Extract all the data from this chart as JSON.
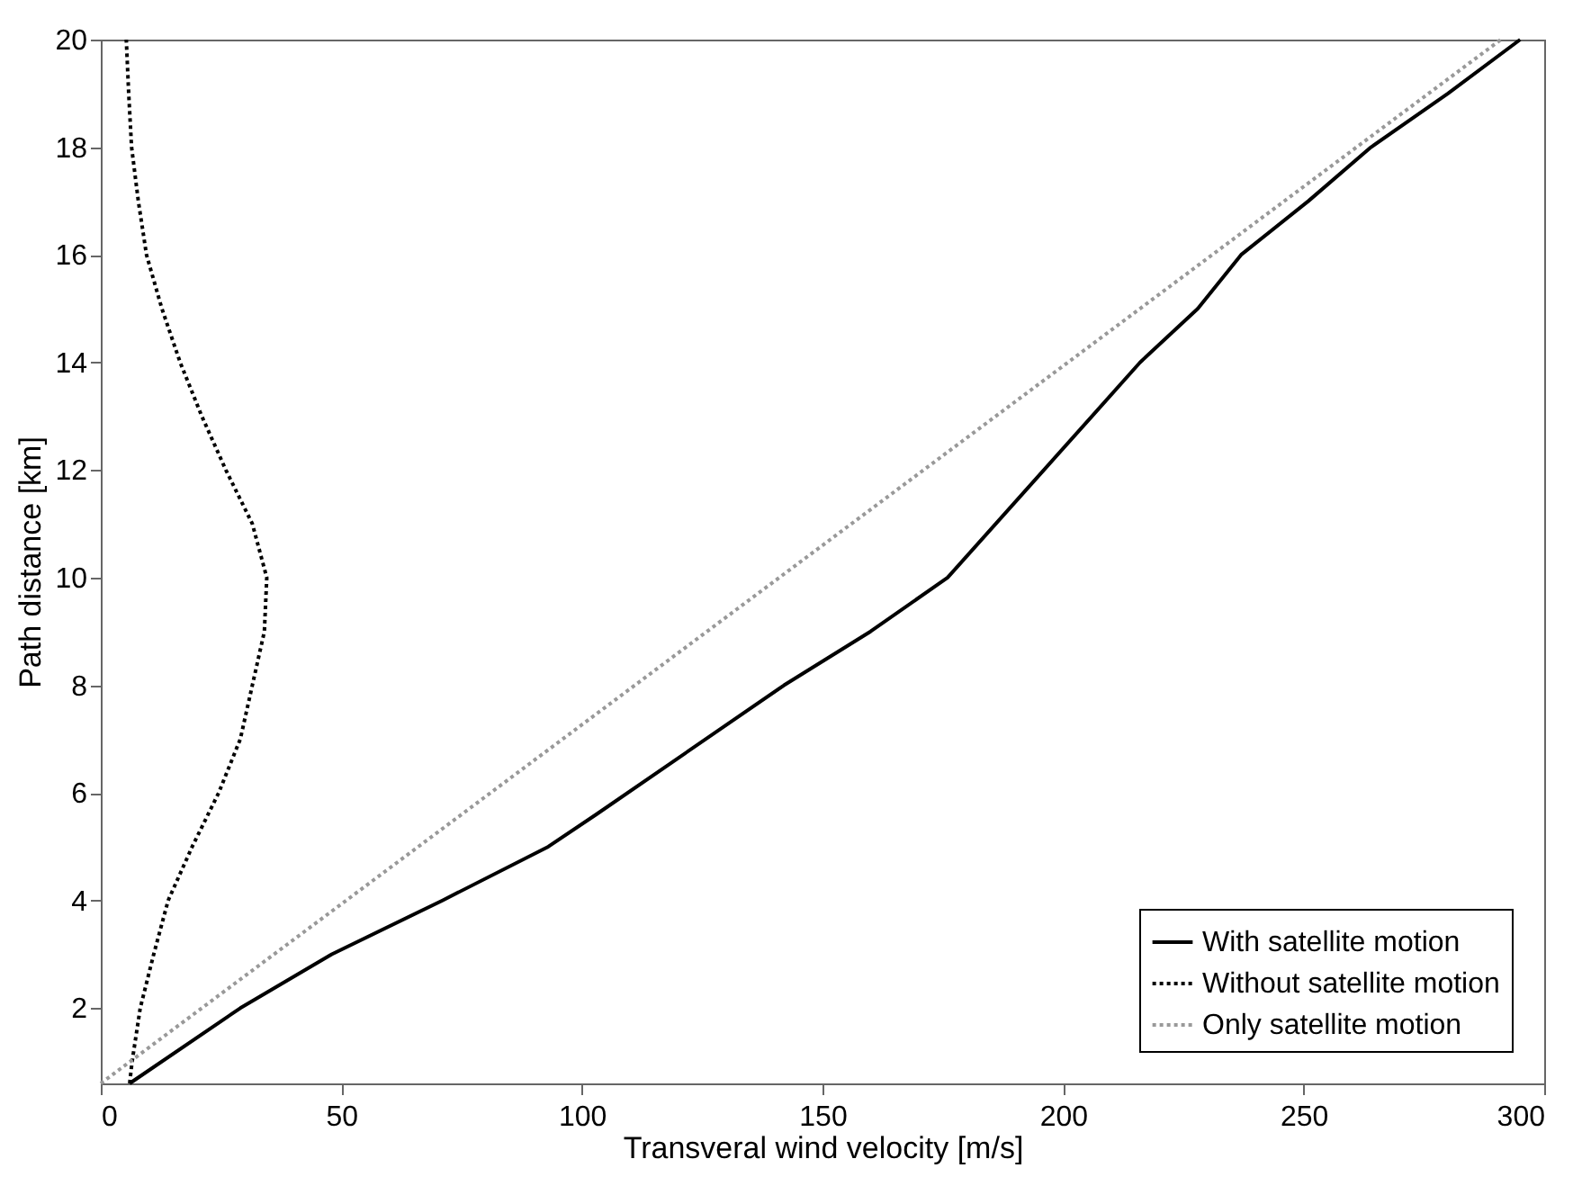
{
  "chart_data": {
    "type": "line",
    "xlabel": "Transveral wind velocity [m/s]",
    "ylabel": "Path distance [km]",
    "xlim": [
      0,
      300
    ],
    "xticks": [
      0,
      50,
      100,
      150,
      200,
      250,
      300
    ],
    "ylim": [
      0.6,
      20
    ],
    "yticks": [
      2,
      4,
      6,
      8,
      10,
      12,
      14,
      16,
      18,
      20
    ],
    "grid": false,
    "legend": "bottom right",
    "series": [
      {
        "name": "With satellite motion",
        "color": "#000000",
        "line_style": "solid",
        "x": [
          6,
          29,
          48,
          71,
          93,
          103,
          142,
          160,
          176,
          186,
          196,
          206,
          216,
          228,
          237,
          251,
          264,
          280,
          295
        ],
        "values": [
          0.6,
          2,
          3,
          4,
          5,
          5.6,
          8,
          9,
          10,
          11,
          12,
          13,
          14,
          15,
          16,
          17,
          18,
          19,
          20
        ]
      },
      {
        "name": "Without satellite motion",
        "color": "#000000",
        "line_style": "dotted",
        "x": [
          6,
          6.5,
          8.2,
          11,
          14,
          19,
          24.5,
          29,
          31.5,
          34,
          34.5,
          31.5,
          26,
          21,
          16.5,
          12.7,
          9.5,
          7.8,
          6.4,
          5.8,
          5.3
        ],
        "values": [
          0.6,
          1,
          2,
          3,
          4,
          5,
          6,
          7,
          8,
          9,
          10,
          11,
          12,
          13,
          14,
          15,
          16,
          17,
          18,
          19,
          20
        ]
      },
      {
        "name": "Only satellite motion",
        "color": "#999999",
        "line_style": "dotted",
        "x": [
          0,
          141,
          291
        ],
        "values": [
          0.6,
          10,
          20
        ]
      }
    ]
  }
}
